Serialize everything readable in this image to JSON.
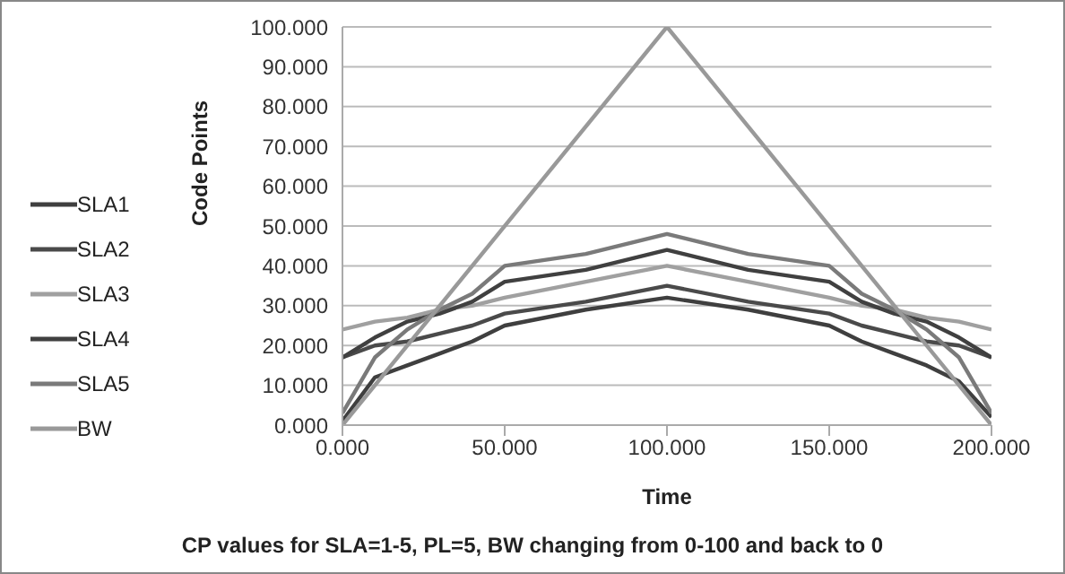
{
  "chart_data": {
    "type": "line",
    "xlabel": "Time",
    "ylabel": "Code Points",
    "annotations": [
      "CP values for SLA=1-5, PL=5, BW changing from 0-100 and back to 0"
    ],
    "x": [
      0,
      10,
      20,
      30,
      40,
      50,
      75,
      100,
      125,
      150,
      160,
      170,
      180,
      190,
      200
    ],
    "series": [
      {
        "name": "SLA1",
        "color": "#3f3f3f",
        "values": [
          1,
          12,
          15,
          18,
          21,
          25,
          29,
          32,
          29,
          25,
          21,
          18,
          15,
          11,
          2
        ]
      },
      {
        "name": "SLA2",
        "color": "#4a4a4a",
        "values": [
          17,
          20,
          21,
          23,
          25,
          28,
          31,
          35,
          31,
          28,
          25,
          23,
          21,
          20,
          17
        ]
      },
      {
        "name": "SLA3",
        "color": "#a0a0a0",
        "values": [
          24,
          26,
          27,
          29,
          30,
          32,
          36,
          40,
          36,
          32,
          30,
          29,
          27,
          26,
          24
        ]
      },
      {
        "name": "SLA4",
        "color": "#404040",
        "values": [
          17,
          22,
          26,
          28,
          31,
          36,
          39,
          44,
          39,
          36,
          31,
          28,
          26,
          22,
          17
        ]
      },
      {
        "name": "SLA5",
        "color": "#7a7a7a",
        "values": [
          3,
          17,
          24,
          29,
          33,
          40,
          43,
          48,
          43,
          40,
          33,
          29,
          24,
          17,
          3
        ]
      },
      {
        "name": "BW",
        "color": "#999999",
        "x": [
          0,
          100,
          200
        ],
        "values": [
          0,
          100,
          0
        ]
      }
    ],
    "xlim": [
      0,
      200
    ],
    "xticks": [
      {
        "value": 0,
        "label": "0.000"
      },
      {
        "value": 50,
        "label": "50.000"
      },
      {
        "value": 100,
        "label": "100.000"
      },
      {
        "value": 150,
        "label": "150.000"
      },
      {
        "value": 200,
        "label": "200.000"
      }
    ],
    "ylim": [
      0,
      100
    ],
    "yticks": [
      {
        "value": 0,
        "label": "0.000"
      },
      {
        "value": 10,
        "label": "10.000"
      },
      {
        "value": 20,
        "label": "20.000"
      },
      {
        "value": 30,
        "label": "30.000"
      },
      {
        "value": 40,
        "label": "40.000"
      },
      {
        "value": 50,
        "label": "50.000"
      },
      {
        "value": 60,
        "label": "60.000"
      },
      {
        "value": 70,
        "label": "70.000"
      },
      {
        "value": 80,
        "label": "80.000"
      },
      {
        "value": 90,
        "label": "90.000"
      },
      {
        "value": 100,
        "label": "100.000"
      }
    ],
    "grid": "y",
    "legend": "left",
    "marker": "none",
    "line_style": "solid"
  }
}
